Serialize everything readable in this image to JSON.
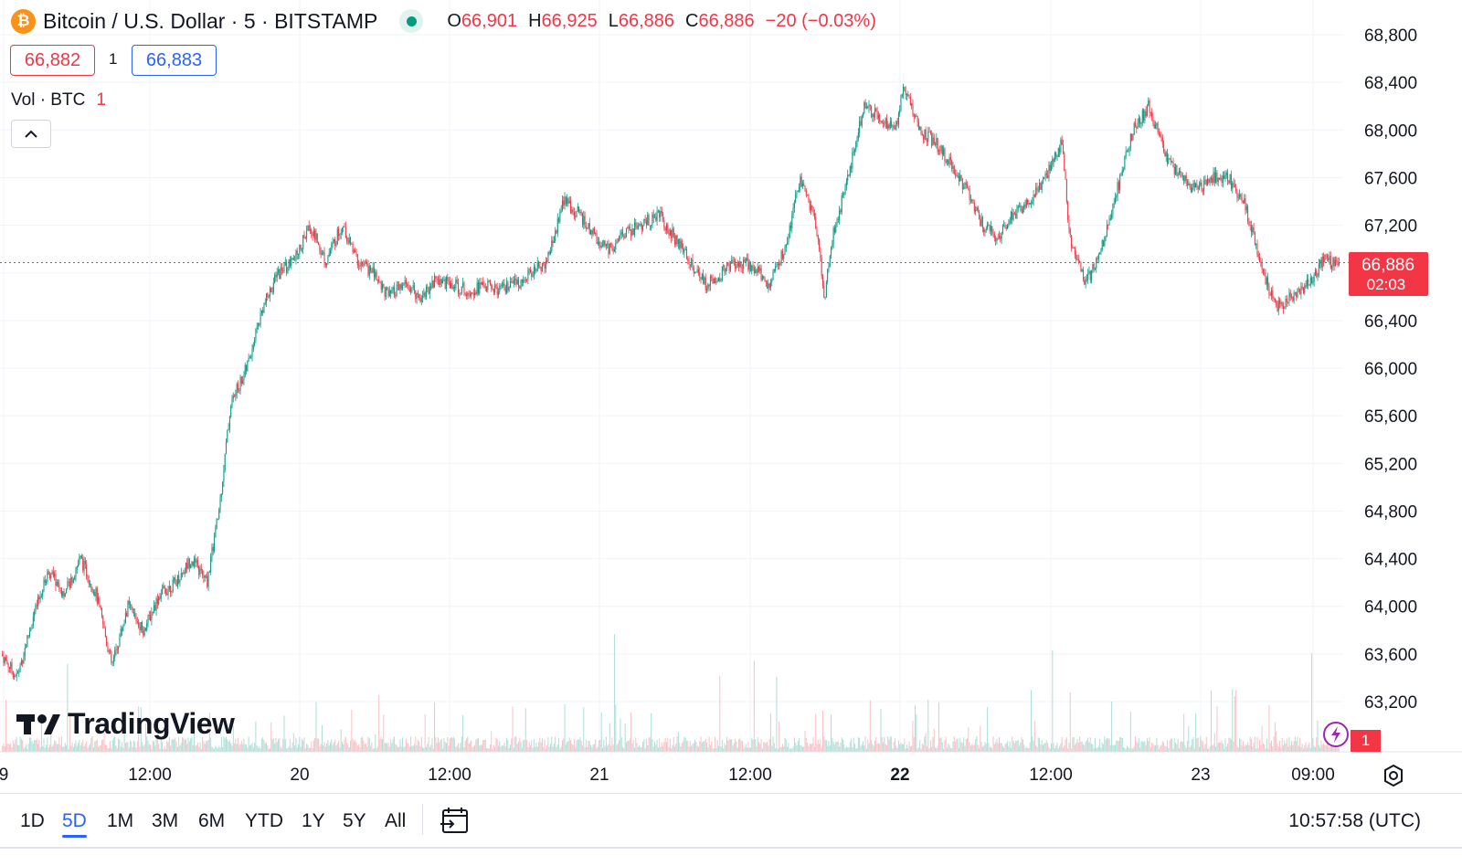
{
  "header": {
    "coin_symbol": "₿",
    "symbol_text": "Bitcoin / U.S. Dollar · 5 · BITSTAMP",
    "market_status": "open",
    "open_label": "O",
    "open_value": "66,901",
    "high_label": "H",
    "high_value": "66,925",
    "low_label": "L",
    "low_value": "66,886",
    "close_label": "C",
    "close_value": "66,886",
    "change": "−20 (−0.03%)"
  },
  "quotes": {
    "sell": "66,882",
    "spread": "1",
    "buy": "66,883"
  },
  "volume_legend": {
    "label": "Vol · BTC",
    "value": "1"
  },
  "price_tag": {
    "price": "66,886",
    "countdown": "02:03"
  },
  "alert_badge": "1",
  "logo_text": "TradingView",
  "ranges": [
    "1D",
    "5D",
    "1M",
    "3M",
    "6M",
    "YTD",
    "1Y",
    "5Y",
    "All"
  ],
  "active_range": "5D",
  "clock": "10:57:58 (UTC)",
  "colors": {
    "up": "#089981",
    "down": "#f23645",
    "accent": "#2962ff",
    "grid": "#f0f3fa"
  },
  "chart_data": {
    "type": "candlestick",
    "title": "Bitcoin / U.S. Dollar · 5 · BITSTAMP",
    "interval": "5",
    "y_axis_ticks": [
      63200,
      63600,
      64000,
      64400,
      64800,
      65200,
      65600,
      66000,
      66400,
      66800,
      67200,
      67600,
      68000,
      68400,
      68800
    ],
    "y_tick_labels": [
      "63,200",
      "63,600",
      "64,000",
      "64,400",
      "64,800",
      "65,200",
      "65,600",
      "66,000",
      "66,400",
      "66,800",
      "67,200",
      "67,600",
      "68,000",
      "68,400",
      "68,800"
    ],
    "ylim": [
      62960,
      68960
    ],
    "x_tick_labels": [
      "9",
      "12:00",
      "20",
      "12:00",
      "21",
      "12:00",
      "22",
      "12:00",
      "23",
      "09:00"
    ],
    "bold_x_label": "22",
    "last_price": 66886,
    "price_path": {
      "description": "5-minute candles, daily close path over 5 days",
      "points": [
        [
          0,
          63600
        ],
        [
          4,
          63400
        ],
        [
          8,
          63900
        ],
        [
          12,
          64300
        ],
        [
          16,
          64100
        ],
        [
          20,
          64400
        ],
        [
          24,
          64100
        ],
        [
          28,
          63500
        ],
        [
          32,
          64000
        ],
        [
          36,
          63800
        ],
        [
          40,
          64100
        ],
        [
          44,
          64200
        ],
        [
          48,
          64400
        ],
        [
          52,
          64200
        ],
        [
          55,
          64800
        ],
        [
          58,
          65700
        ],
        [
          62,
          66000
        ],
        [
          66,
          66500
        ],
        [
          70,
          66800
        ],
        [
          74,
          66900
        ],
        [
          78,
          67200
        ],
        [
          82,
          66900
        ],
        [
          86,
          67200
        ],
        [
          90,
          66900
        ],
        [
          94,
          66800
        ],
        [
          98,
          66600
        ],
        [
          102,
          66700
        ],
        [
          106,
          66600
        ],
        [
          110,
          66750
        ],
        [
          114,
          66700
        ],
        [
          118,
          66650
        ],
        [
          122,
          66700
        ],
        [
          126,
          66650
        ],
        [
          130,
          66700
        ],
        [
          134,
          66800
        ],
        [
          138,
          66900
        ],
        [
          142,
          67400
        ],
        [
          146,
          67300
        ],
        [
          150,
          67100
        ],
        [
          154,
          67000
        ],
        [
          158,
          67150
        ],
        [
          162,
          67200
        ],
        [
          166,
          67300
        ],
        [
          170,
          67100
        ],
        [
          174,
          66900
        ],
        [
          178,
          66700
        ],
        [
          182,
          66800
        ],
        [
          186,
          66900
        ],
        [
          190,
          66850
        ],
        [
          194,
          66700
        ],
        [
          198,
          67000
        ],
        [
          202,
          67600
        ],
        [
          206,
          67200
        ],
        [
          208,
          66600
        ],
        [
          210,
          67100
        ],
        [
          214,
          67600
        ],
        [
          218,
          68200
        ],
        [
          222,
          68100
        ],
        [
          226,
          68000
        ],
        [
          228,
          68400
        ],
        [
          232,
          68000
        ],
        [
          236,
          67900
        ],
        [
          240,
          67700
        ],
        [
          244,
          67500
        ],
        [
          248,
          67200
        ],
        [
          252,
          67100
        ],
        [
          256,
          67300
        ],
        [
          260,
          67400
        ],
        [
          264,
          67600
        ],
        [
          268,
          67900
        ],
        [
          270,
          67100
        ],
        [
          274,
          66700
        ],
        [
          278,
          67000
        ],
        [
          282,
          67500
        ],
        [
          286,
          68000
        ],
        [
          290,
          68200
        ],
        [
          294,
          67800
        ],
        [
          298,
          67600
        ],
        [
          302,
          67500
        ],
        [
          306,
          67600
        ],
        [
          310,
          67600
        ],
        [
          314,
          67400
        ],
        [
          318,
          66900
        ],
        [
          322,
          66500
        ],
        [
          326,
          66600
        ],
        [
          330,
          66700
        ],
        [
          334,
          66900
        ],
        [
          338,
          66886
        ]
      ]
    }
  }
}
